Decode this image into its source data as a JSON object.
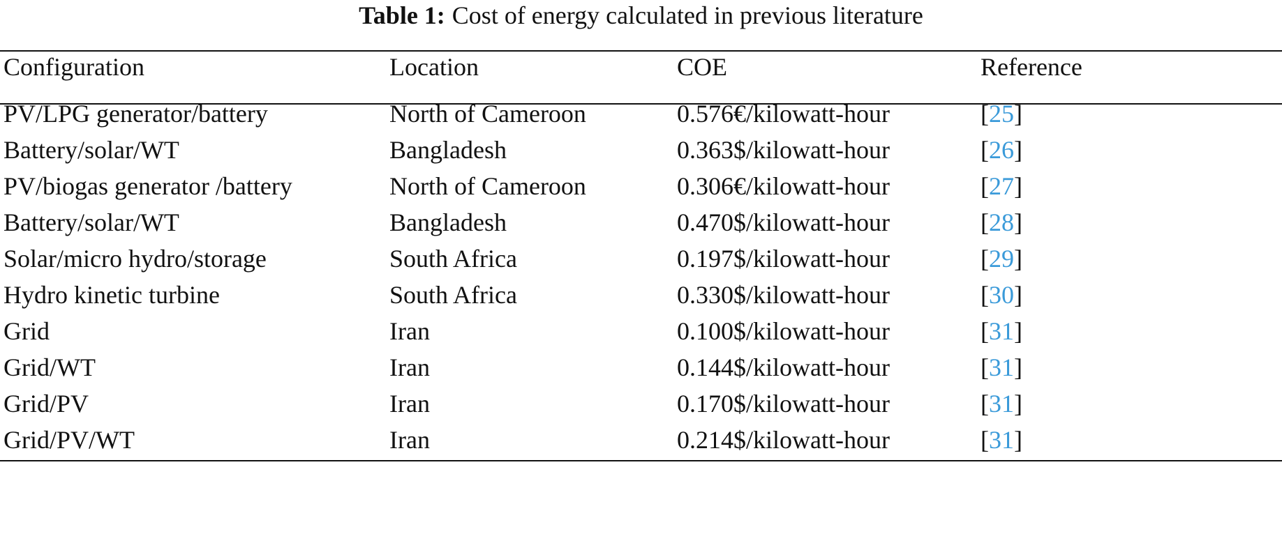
{
  "caption": {
    "label": "Table 1:",
    "text": "Cost of energy calculated in previous literature"
  },
  "colors": {
    "reference_link": "#3a9ad9"
  },
  "table": {
    "headers": [
      "Configuration",
      "Location",
      "COE",
      "Reference"
    ],
    "rows": [
      {
        "configuration": "PV/LPG generator/battery",
        "location": "North of Cameroon",
        "coe": "0.576€/kilowatt-hour",
        "ref": "25"
      },
      {
        "configuration": "Battery/solar/WT",
        "location": "Bangladesh",
        "coe": "0.363$/kilowatt-hour",
        "ref": "26"
      },
      {
        "configuration": "PV/biogas generator /battery",
        "location": "North of Cameroon",
        "coe": "0.306€/kilowatt-hour",
        "ref": "27"
      },
      {
        "configuration": "Battery/solar/WT",
        "location": "Bangladesh",
        "coe": "0.470$/kilowatt-hour",
        "ref": "28"
      },
      {
        "configuration": "Solar/micro hydro/storage",
        "location": "South Africa",
        "coe": "0.197$/kilowatt-hour",
        "ref": "29"
      },
      {
        "configuration": "Hydro kinetic turbine",
        "location": "South Africa",
        "coe": "0.330$/kilowatt-hour",
        "ref": "30"
      },
      {
        "configuration": "Grid",
        "location": "Iran",
        "coe": "0.100$/kilowatt-hour",
        "ref": "31"
      },
      {
        "configuration": "Grid/WT",
        "location": "Iran",
        "coe": "0.144$/kilowatt-hour",
        "ref": "31"
      },
      {
        "configuration": "Grid/PV",
        "location": "Iran",
        "coe": "0.170$/kilowatt-hour",
        "ref": "31"
      },
      {
        "configuration": "Grid/PV/WT",
        "location": "Iran",
        "coe": "0.214$/kilowatt-hour",
        "ref": "31"
      }
    ]
  }
}
